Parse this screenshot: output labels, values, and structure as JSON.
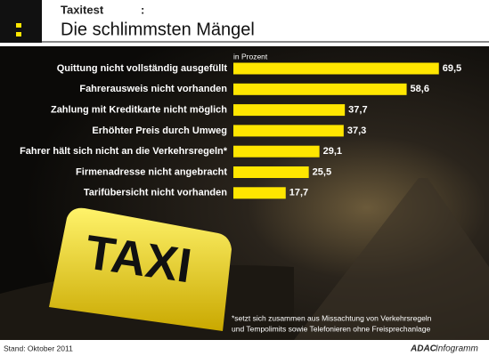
{
  "header": {
    "kicker": "Taxitest",
    "kicker_colon": ":"
  },
  "chart_data": {
    "type": "bar",
    "orientation": "horizontal",
    "title": "Die schlimmsten Mängel",
    "unit_label": "in Prozent",
    "categories": [
      "Quittung nicht vollständig ausgefüllt",
      "Fahrerausweis nicht vorhanden",
      "Zahlung mit Kreditkarte nicht möglich",
      "Erhöhter Preis durch Umweg",
      "Fahrer hält sich nicht an die Verkehrsregeln*",
      "Firmenadresse nicht angebracht",
      "Tarifübersicht nicht vorhanden"
    ],
    "values": [
      69.5,
      58.6,
      37.7,
      37.3,
      29.1,
      25.5,
      17.7
    ],
    "value_labels": [
      "69,5",
      "58,6",
      "37,7",
      "37,3",
      "29,1",
      "25,5",
      "17,7"
    ],
    "color": "#ffe600"
  },
  "photo": {
    "sign_text": "TAXI"
  },
  "footnote": [
    "*setzt sich zusammen aus Missachtung von Verkehrsregeln",
    "und Tempolimits sowie Telefonieren ohne Freisprechanlage"
  ],
  "footer": {
    "stand": "Stand: Oktober 2011",
    "brand": "ADAC",
    "brand_suffix": "Infogramm"
  }
}
